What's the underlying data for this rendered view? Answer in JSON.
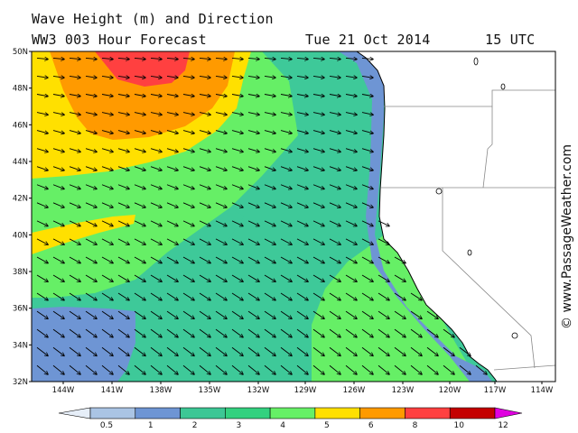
{
  "header": {
    "title": "Wave Height (m) and Direction",
    "model": "WW3 003 Hour Forecast",
    "date": "Tue 21 Oct 2014",
    "time": "15 UTC"
  },
  "credit": "© www.PassageWeather.com",
  "map": {
    "lat_labels": [
      "50N",
      "48N",
      "46N",
      "44N",
      "42N",
      "40N",
      "38N",
      "36N",
      "34N",
      "32N"
    ],
    "lon_labels": [
      "144W",
      "141W",
      "138W",
      "135W",
      "132W",
      "129W",
      "126W",
      "123W",
      "120W",
      "117W",
      "114W"
    ],
    "lat_range": [
      32,
      50
    ],
    "lon_range": [
      -146,
      -113
    ],
    "arrow_direction": "southeast swell toward the coast",
    "colors": {
      "land": "#ffffff",
      "ocean_grid": "#000000"
    }
  },
  "colorbar": {
    "labels": [
      "0.5",
      "1",
      "2",
      "3",
      "4",
      "5",
      "6",
      "8",
      "10",
      "12"
    ],
    "colors": [
      "#e6eef8",
      "#aac4e4",
      "#6e95d4",
      "#3dc795",
      "#33d17f",
      "#66f066",
      "#ffe000",
      "#ff9a00",
      "#ff4040",
      "#c40000",
      "#e000e0"
    ]
  }
}
